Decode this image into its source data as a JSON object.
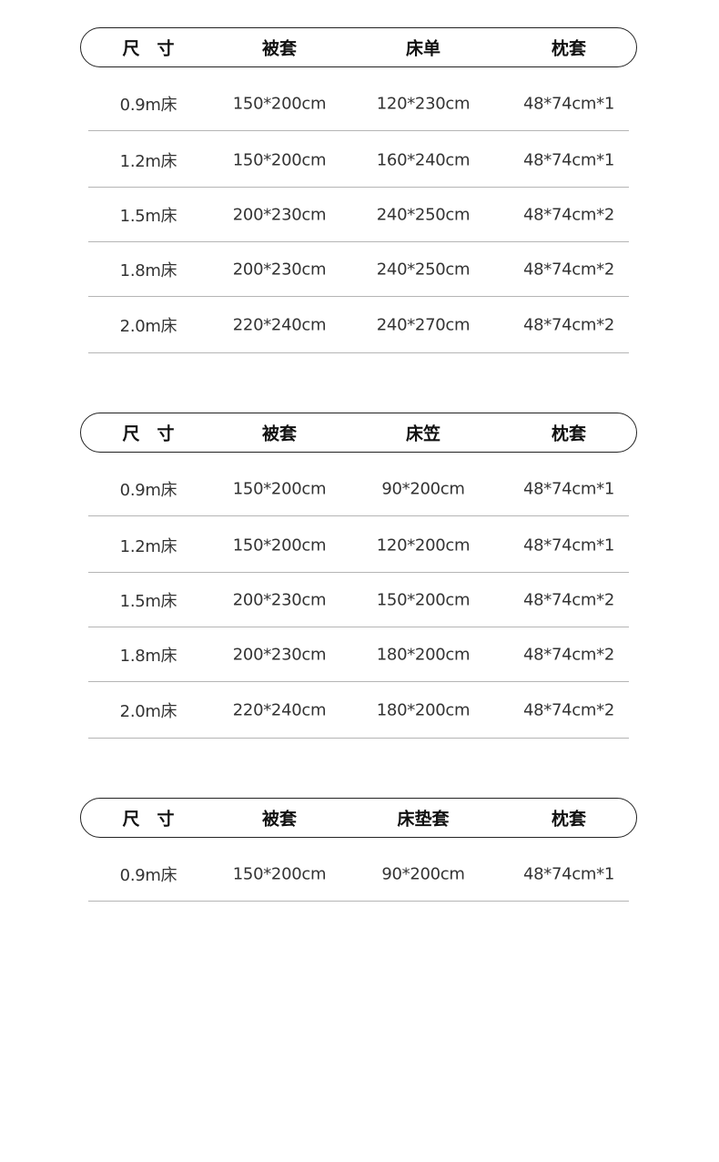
{
  "tables": [
    {
      "headers": [
        "尺　寸",
        "被套",
        "床单",
        "枕套"
      ],
      "rows": [
        [
          "0.9m床",
          "150*200cm",
          "120*230cm",
          "48*74cm*1"
        ],
        [
          "1.2m床",
          "150*200cm",
          "160*240cm",
          "48*74cm*1"
        ],
        [
          "1.5m床",
          "200*230cm",
          "240*250cm",
          "48*74cm*2"
        ],
        [
          "1.8m床",
          "200*230cm",
          "240*250cm",
          "48*74cm*2"
        ],
        [
          "2.0m床",
          "220*240cm",
          "240*270cm",
          "48*74cm*2"
        ]
      ]
    },
    {
      "headers": [
        "尺　寸",
        "被套",
        "床笠",
        "枕套"
      ],
      "rows": [
        [
          "0.9m床",
          "150*200cm",
          "90*200cm",
          "48*74cm*1"
        ],
        [
          "1.2m床",
          "150*200cm",
          "120*200cm",
          "48*74cm*1"
        ],
        [
          "1.5m床",
          "200*230cm",
          "150*200cm",
          "48*74cm*2"
        ],
        [
          "1.8m床",
          "200*230cm",
          "180*200cm",
          "48*74cm*2"
        ],
        [
          "2.0m床",
          "220*240cm",
          "180*200cm",
          "48*74cm*2"
        ]
      ]
    },
    {
      "headers": [
        "尺　寸",
        "被套",
        "床垫套",
        "枕套"
      ],
      "rows": [
        [
          "0.9m床",
          "150*200cm",
          "90*200cm",
          "48*74cm*1"
        ]
      ]
    }
  ]
}
